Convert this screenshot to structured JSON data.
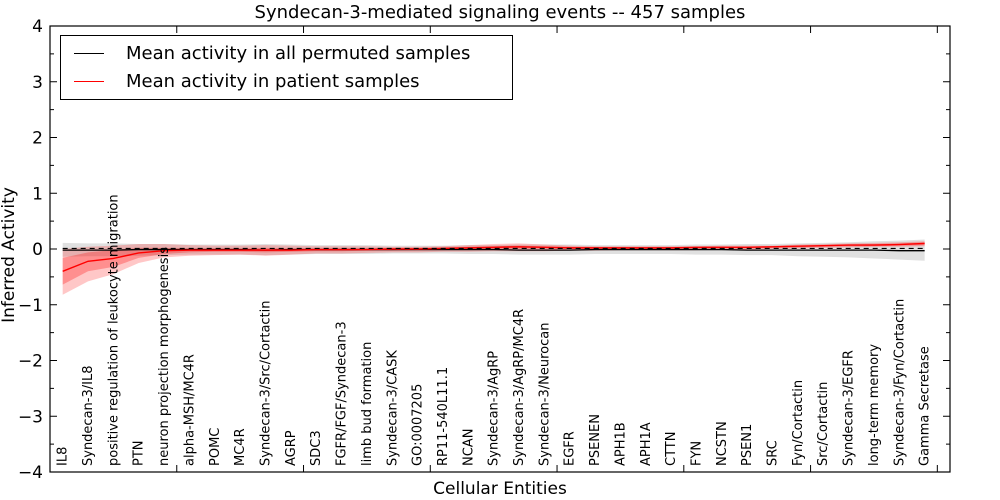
{
  "figure": {
    "title": "Syndecan-3-mediated signaling events -- 457 samples",
    "xlabel": "Cellular Entities",
    "ylabel": "Inferred Activity"
  },
  "legend": {
    "entries": [
      {
        "label": "Mean activity in all permuted samples",
        "color": "#000000"
      },
      {
        "label": "Mean activity in patient samples",
        "color": "#ff0000"
      }
    ]
  },
  "chart_data": {
    "type": "line",
    "title": "Syndecan-3-mediated signaling events -- 457 samples",
    "xlabel": "Cellular Entities",
    "ylabel": "Inferred Activity",
    "ylim": [
      -4,
      4
    ],
    "y_tick_values": [
      4,
      3,
      2,
      1,
      0,
      -1,
      -2,
      -3,
      -4
    ],
    "y_tick_labels": [
      "4",
      "3",
      "2",
      "1",
      "0",
      "−1",
      "−2",
      "−3",
      "−4"
    ],
    "layout": {
      "legend_position": "upper left",
      "grid": false,
      "x_major_tick_every": 5,
      "y_minor_tick_step": 0.5,
      "x_labels_rotated_90_inside": true
    },
    "categories": [
      "IL8",
      "Syndecan-3/IL8",
      "positive regulation of leukocyte migration",
      "PTN",
      "neuron projection morphogenesis",
      "alpha-MSH/MC4R",
      "POMC",
      "MC4R",
      "Syndecan-3/Src/Cortactin",
      "AGRP",
      "SDC3",
      "FGFR/FGF/Syndecan-3",
      "limb bud formation",
      "Syndecan-3/CASK",
      "GO:0007205",
      "RP11-540L11.1",
      "NCAN",
      "Syndecan-3/AgRP",
      "Syndecan-3/AgRP/MC4R",
      "Syndecan-3/Neurocan",
      "EGFR",
      "PSENEN",
      "APH1B",
      "APH1A",
      "CTTN",
      "FYN",
      "NCSTN",
      "PSEN1",
      "SRC",
      "Fyn/Cortactin",
      "Src/Cortactin",
      "Syndecan-3/EGFR",
      "long-term memory",
      "Syndecan-3/Fyn/Cortactin",
      "Gamma Secretase"
    ],
    "bands": [
      {
        "name": "permuted-samples-range",
        "fill": "rgba(0,0,0,0.12)",
        "upper": [
          0.11,
          0.1,
          0.1,
          0.09,
          0.09,
          0.08,
          0.08,
          0.08,
          0.09,
          0.08,
          0.07,
          0.07,
          0.07,
          0.06,
          0.06,
          0.06,
          0.07,
          0.07,
          0.08,
          0.08,
          0.08,
          0.07,
          0.07,
          0.07,
          0.07,
          0.08,
          0.08,
          0.09,
          0.09,
          0.1,
          0.11,
          0.12,
          0.14,
          0.15,
          0.17
        ],
        "lower": [
          -0.14,
          -0.13,
          -0.13,
          -0.12,
          -0.11,
          -0.1,
          -0.1,
          -0.1,
          -0.11,
          -0.1,
          -0.09,
          -0.09,
          -0.09,
          -0.08,
          -0.08,
          -0.08,
          -0.09,
          -0.09,
          -0.1,
          -0.1,
          -0.1,
          -0.09,
          -0.09,
          -0.09,
          -0.09,
          -0.1,
          -0.1,
          -0.11,
          -0.11,
          -0.13,
          -0.14,
          -0.15,
          -0.17,
          -0.19,
          -0.21
        ]
      },
      {
        "name": "patient-samples-range-outer",
        "fill": "rgba(255,0,0,0.22)",
        "upper": [
          0.0,
          0.04,
          0.06,
          0.09,
          0.09,
          0.07,
          0.06,
          0.06,
          0.07,
          0.06,
          0.05,
          0.05,
          0.05,
          0.04,
          0.04,
          0.05,
          0.07,
          0.09,
          0.1,
          0.08,
          0.06,
          0.05,
          0.05,
          0.05,
          0.05,
          0.05,
          0.06,
          0.06,
          0.06,
          0.08,
          0.09,
          0.1,
          0.11,
          0.12,
          0.14
        ],
        "lower": [
          -0.82,
          -0.58,
          -0.45,
          -0.25,
          -0.15,
          -0.12,
          -0.11,
          -0.1,
          -0.12,
          -0.1,
          -0.08,
          -0.08,
          -0.07,
          -0.06,
          -0.06,
          -0.05,
          -0.05,
          -0.04,
          -0.04,
          -0.04,
          -0.03,
          -0.03,
          -0.02,
          -0.02,
          -0.02,
          -0.02,
          -0.01,
          -0.01,
          0.0,
          0.01,
          0.02,
          0.03,
          0.04,
          0.04,
          0.05
        ]
      },
      {
        "name": "patient-samples-range-inner",
        "fill": "rgba(255,0,0,0.28)",
        "upper": [
          -0.16,
          -0.06,
          -0.02,
          0.02,
          0.02,
          0.01,
          0.01,
          0.01,
          0.02,
          0.01,
          0.01,
          0.01,
          0.01,
          0.02,
          0.02,
          0.03,
          0.04,
          0.05,
          0.06,
          0.05,
          0.04,
          0.03,
          0.03,
          0.03,
          0.03,
          0.04,
          0.04,
          0.04,
          0.05,
          0.06,
          0.07,
          0.08,
          0.09,
          0.1,
          0.12
        ],
        "lower": [
          -0.64,
          -0.4,
          -0.32,
          -0.16,
          -0.09,
          -0.06,
          -0.05,
          -0.05,
          -0.06,
          -0.05,
          -0.04,
          -0.04,
          -0.03,
          -0.03,
          -0.02,
          -0.02,
          -0.01,
          0.0,
          0.01,
          0.01,
          0.0,
          0.0,
          0.0,
          0.0,
          0.0,
          0.01,
          0.01,
          0.01,
          0.02,
          0.03,
          0.04,
          0.05,
          0.05,
          0.06,
          0.07
        ]
      }
    ],
    "series": [
      {
        "name": "Mean activity in all permuted samples",
        "color": "#000000",
        "style": "solid",
        "width": 1.3,
        "values": [
          -0.02,
          -0.02,
          -0.02,
          -0.01,
          -0.01,
          -0.01,
          -0.01,
          -0.01,
          -0.02,
          -0.01,
          -0.01,
          -0.01,
          -0.01,
          -0.01,
          -0.01,
          -0.01,
          -0.01,
          -0.01,
          -0.02,
          -0.02,
          -0.02,
          -0.01,
          -0.01,
          -0.01,
          -0.01,
          -0.01,
          -0.01,
          -0.02,
          -0.02,
          -0.02,
          -0.02,
          -0.02,
          -0.02,
          -0.03,
          -0.03
        ]
      },
      {
        "name": "Mean activity in patient samples",
        "color": "#ff0000",
        "style": "solid",
        "width": 1.4,
        "values": [
          -0.4,
          -0.22,
          -0.17,
          -0.07,
          -0.03,
          -0.02,
          -0.02,
          -0.02,
          -0.02,
          -0.02,
          -0.01,
          -0.01,
          -0.01,
          0.0,
          0.0,
          0.01,
          0.02,
          0.03,
          0.04,
          0.03,
          0.02,
          0.02,
          0.02,
          0.02,
          0.02,
          0.03,
          0.03,
          0.03,
          0.04,
          0.05,
          0.06,
          0.07,
          0.07,
          0.08,
          0.1
        ]
      },
      {
        "name": "permuted-zero-reference-dashed",
        "color": "#000000",
        "style": "dashed",
        "width": 1.2,
        "values": [
          0.01,
          0.01,
          0.01,
          0.01,
          0.01,
          0.01,
          0.01,
          0.01,
          0.01,
          0.01,
          0.01,
          0.01,
          0.01,
          0.01,
          0.01,
          0.01,
          0.01,
          0.01,
          0.01,
          0.01,
          0.01,
          0.01,
          0.01,
          0.01,
          0.01,
          0.01,
          0.01,
          0.01,
          0.01,
          0.01,
          0.01,
          0.01,
          0.01,
          0.01,
          0.01
        ]
      }
    ]
  }
}
